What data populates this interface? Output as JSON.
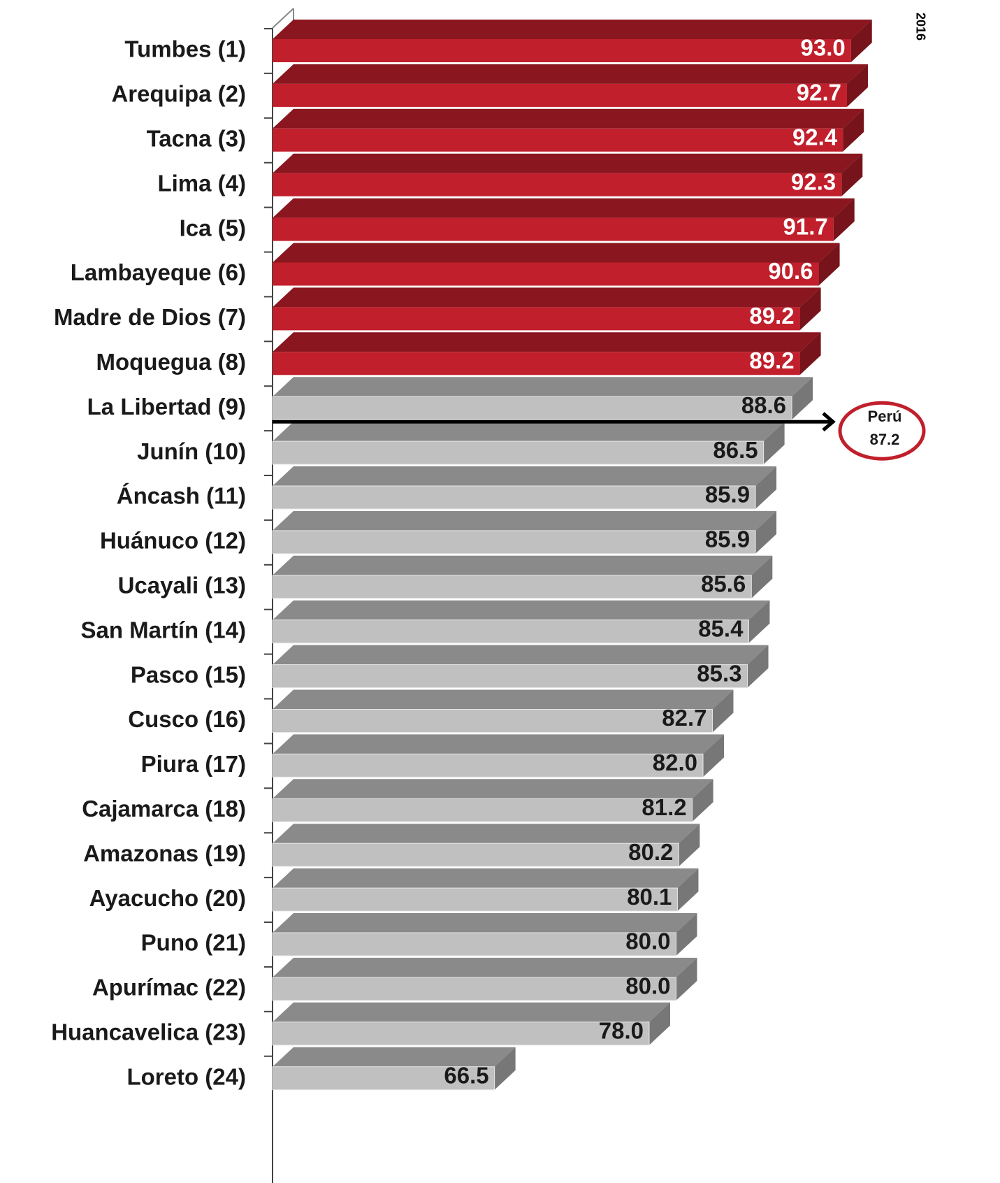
{
  "chart_data": {
    "type": "bar3d-horizontal",
    "categories": [
      "Tumbes (1)",
      "Arequipa (2)",
      "Tacna (3)",
      "Lima (4)",
      "Ica (5)",
      "Lambayeque (6)",
      "Madre de Dios (7)",
      "Moquegua (8)",
      "La Libertad (9)",
      "Junín (10)",
      "Áncash (11)",
      "Huánuco (12)",
      "Ucayali (13)",
      "San Martín (14)",
      "Pasco (15)",
      "Cusco (16)",
      "Piura (17)",
      "Cajamarca (18)",
      "Amazonas (19)",
      "Ayacucho (20)",
      "Puno (21)",
      "Apurímac (22)",
      "Huancavelica (23)",
      "Loreto (24)"
    ],
    "values": [
      93.0,
      92.7,
      92.4,
      92.3,
      91.7,
      90.6,
      89.2,
      89.2,
      88.6,
      86.5,
      85.9,
      85.9,
      85.6,
      85.4,
      85.3,
      82.7,
      82.0,
      81.2,
      80.2,
      80.1,
      80.0,
      80.0,
      78.0,
      66.5
    ],
    "value_labels": [
      "93.0",
      "92.7",
      "92.4",
      "92.3",
      "91.7",
      "90.6",
      "89.2",
      "89.2",
      "88.6",
      "86.5",
      "85.9",
      "85.9",
      "85.6",
      "85.4",
      "85.3",
      "82.7",
      "82.0",
      "81.2",
      "80.2",
      "80.1",
      "80.0",
      "80.0",
      "78.0",
      "66.5"
    ],
    "colors": [
      "#c01f2b",
      "#c01f2b",
      "#c01f2b",
      "#c01f2b",
      "#c01f2b",
      "#c01f2b",
      "#c01f2b",
      "#c01f2b",
      "#c0c0c0",
      "#c0c0c0",
      "#c0c0c0",
      "#c0c0c0",
      "#c0c0c0",
      "#c0c0c0",
      "#c0c0c0",
      "#c0c0c0",
      "#c0c0c0",
      "#c0c0c0",
      "#c0c0c0",
      "#c0c0c0",
      "#c0c0c0",
      "#c0c0c0",
      "#c0c0c0",
      "#c0c0c0"
    ],
    "xlim": [
      50,
      100
    ],
    "reference": {
      "label": "Perú",
      "value": 87.2
    },
    "annotation": "2016"
  }
}
